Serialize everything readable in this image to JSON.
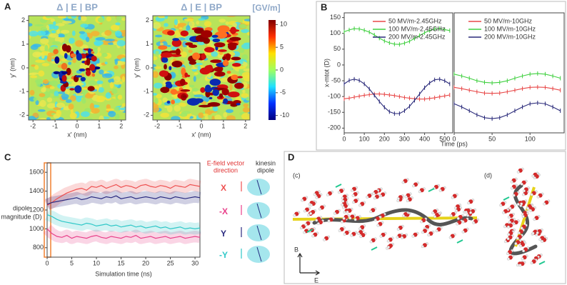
{
  "panel_labels": [
    "A",
    "B",
    "C",
    "D"
  ],
  "chart_data": [
    {
      "type": "heatmap",
      "title": "Δ | E | BP",
      "xlabel": "x' (nm)",
      "ylabel": "y' (nm)",
      "xlim": [
        -2.2,
        2.2
      ],
      "xticks": [
        -2,
        -1,
        0,
        1,
        2
      ],
      "ylim": [
        -2.2,
        2.2
      ],
      "yticks": [
        -2,
        -1,
        0,
        1,
        2
      ]
    },
    {
      "type": "heatmap",
      "title": "Δ | E | BP",
      "xlabel": "x' (nm)",
      "ylabel": "y' (nm)",
      "xlim": [
        -2.2,
        2.2
      ],
      "xticks": [
        -2,
        -1,
        0,
        1,
        2
      ],
      "ylim": [
        -2.2,
        2.2
      ],
      "yticks": [
        -2,
        -1,
        0,
        1,
        2
      ]
    },
    {
      "type": "colorbar",
      "title": "[GV/m]",
      "ylim": [
        -11,
        11
      ],
      "yticks": [
        -10,
        -5,
        0,
        5,
        10
      ],
      "colors": [
        "#00007f",
        "#0030ff",
        "#20e0ff",
        "#a0ff60",
        "#ffe000",
        "#ff3000",
        "#7f0000"
      ]
    },
    {
      "type": "line",
      "ylabel": "x-mtot (D)",
      "xlabel": "Time (ps)",
      "x": [
        0,
        25,
        50,
        75,
        100,
        125,
        150,
        175,
        200,
        225,
        250,
        275,
        300,
        325,
        350,
        375,
        400,
        425,
        450,
        475,
        500,
        525
      ],
      "xlim": [
        0,
        540
      ],
      "xticks": [
        0,
        100,
        200,
        300,
        400,
        500
      ],
      "ylim": [
        -215,
        165
      ],
      "yticks": [
        150,
        100,
        50,
        0,
        -50,
        -100,
        -150,
        -200
      ],
      "series": [
        {
          "name": "50  MV/m-2.45GHz",
          "color": "#e84848",
          "values": [
            -107,
            -105,
            -102,
            -99,
            -96,
            -94,
            -92,
            -92,
            -93,
            -95,
            -97,
            -100,
            -103,
            -105,
            -107,
            -108,
            -108,
            -106,
            -104,
            -101,
            -98,
            -95
          ]
        },
        {
          "name": "100  MV/m-2.45GHz",
          "color": "#40d040",
          "values": [
            105,
            111,
            115,
            114,
            110,
            104,
            95,
            85,
            76,
            70,
            66,
            65,
            69,
            75,
            84,
            93,
            102,
            109,
            114,
            115,
            112,
            109
          ]
        },
        {
          "name": "200  MV/m-2.45GHz",
          "color": "#2a2a7a",
          "values": [
            -60,
            -49,
            -45,
            -49,
            -60,
            -76,
            -96,
            -116,
            -134,
            -148,
            -154,
            -154,
            -145,
            -131,
            -112,
            -92,
            -72,
            -57,
            -47,
            -45,
            -50,
            -60
          ]
        }
      ]
    },
    {
      "type": "line",
      "x": [
        0,
        10,
        20,
        30,
        40,
        50,
        60,
        70,
        80,
        90,
        100,
        110,
        120,
        130,
        140
      ],
      "xlim": [
        0,
        145
      ],
      "xticks": [
        0,
        50,
        100
      ],
      "ylim": [
        -215,
        165
      ],
      "series": [
        {
          "name": "50  MV/m-10GHz",
          "color": "#e84848",
          "values": [
            -71,
            -75,
            -80,
            -85,
            -89,
            -90,
            -89,
            -85,
            -80,
            -75,
            -71,
            -70,
            -71,
            -75,
            -80
          ]
        },
        {
          "name": "100  MV/m-10GHz",
          "color": "#40d040",
          "values": [
            -29,
            -35,
            -42,
            -50,
            -55,
            -57,
            -55,
            -50,
            -42,
            -35,
            -29,
            -27,
            -29,
            -35,
            -42
          ]
        },
        {
          "name": "200  MV/m-10GHz",
          "color": "#2a2a7a",
          "values": [
            -123,
            -133,
            -145,
            -158,
            -167,
            -170,
            -167,
            -158,
            -145,
            -133,
            -123,
            -120,
            -123,
            -133,
            -145
          ]
        }
      ]
    },
    {
      "type": "band-line",
      "ylabel": [
        "dipole",
        "magnitude (D)"
      ],
      "xlabel": "Simulation time (ns)",
      "legend_title": [
        "E-field vector",
        "direction"
      ],
      "legend_subtitle": [
        "kinesin",
        "dipole"
      ],
      "x": [
        0,
        1,
        2,
        3,
        4,
        5,
        6,
        7,
        8,
        9,
        10,
        11,
        12,
        13,
        14,
        15,
        16,
        17,
        18,
        19,
        20,
        21,
        22,
        23,
        24,
        25,
        26,
        27,
        28,
        29,
        30,
        31
      ],
      "xlim": [
        0,
        31
      ],
      "xticks": [
        0,
        5,
        10,
        15,
        20,
        25,
        30
      ],
      "ylim": [
        700,
        1700
      ],
      "yticks": [
        800,
        1000,
        1200,
        1400,
        1600
      ],
      "series": [
        {
          "name": "X",
          "color": "#ee5050",
          "values": [
            1250,
            1280,
            1320,
            1350,
            1380,
            1400,
            1420,
            1430,
            1410,
            1450,
            1440,
            1460,
            1430,
            1450,
            1470,
            1440,
            1460,
            1450,
            1430,
            1460,
            1470,
            1450,
            1440,
            1460,
            1450,
            1430,
            1460,
            1450,
            1440,
            1470,
            1460,
            1450
          ]
        },
        {
          "name": "-X",
          "color": "#e8408a",
          "values": [
            1000,
            950,
            920,
            910,
            930,
            900,
            920,
            910,
            900,
            920,
            930,
            910,
            900,
            920,
            910,
            900,
            920,
            910,
            930,
            900,
            910,
            920,
            900,
            910,
            920,
            900,
            910,
            920,
            900,
            910,
            920,
            910
          ]
        },
        {
          "name": "Y",
          "color": "#2a2a80",
          "values": [
            1260,
            1280,
            1290,
            1300,
            1310,
            1320,
            1330,
            1310,
            1320,
            1340,
            1330,
            1320,
            1340,
            1330,
            1350,
            1320,
            1330,
            1340,
            1320,
            1330,
            1340,
            1330,
            1320,
            1340,
            1330,
            1320,
            1340,
            1330,
            1320,
            1330,
            1340,
            1330
          ]
        },
        {
          "name": "-Y",
          "color": "#30c8c8",
          "values": [
            1150,
            1130,
            1100,
            1080,
            1070,
            1060,
            1050,
            1040,
            1060,
            1050,
            1030,
            1040,
            1050,
            1030,
            1040,
            1020,
            1030,
            1040,
            1020,
            1030,
            1010,
            1020,
            1030,
            1010,
            1020,
            1000,
            1010,
            1020,
            1000,
            1010,
            1000,
            1010
          ]
        }
      ]
    }
  ],
  "diagram": {
    "labels": [
      "(c)",
      "(d)"
    ],
    "axes": [
      "B",
      "E"
    ]
  }
}
